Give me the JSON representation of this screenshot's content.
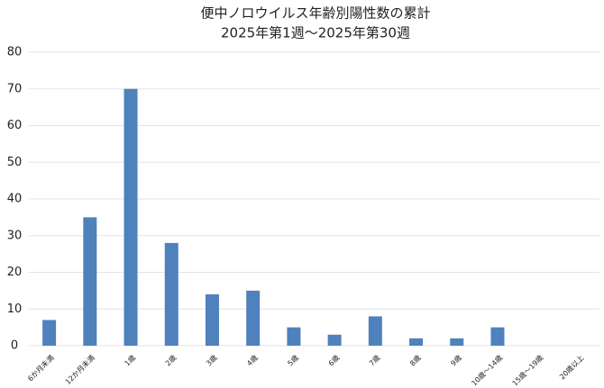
{
  "chart_data": {
    "type": "bar",
    "title": "便中ノロウイルス年齢別陽性数の累計",
    "subtitle": "2025年第1週～2025年第30週",
    "categories": [
      "6か月未満",
      "12か月未満",
      "1歳",
      "2歳",
      "3歳",
      "4歳",
      "5歳",
      "6歳",
      "7歳",
      "8歳",
      "9歳",
      "10歳～14歳",
      "15歳～19歳",
      "20歳以上"
    ],
    "values": [
      7,
      35,
      70,
      28,
      14,
      15,
      5,
      3,
      8,
      2,
      2,
      5,
      0,
      0
    ],
    "color": "#4f81bd",
    "ylim": [
      0,
      80
    ],
    "yticks": [
      0,
      10,
      20,
      30,
      40,
      50,
      60,
      70,
      80
    ],
    "grid": true
  }
}
